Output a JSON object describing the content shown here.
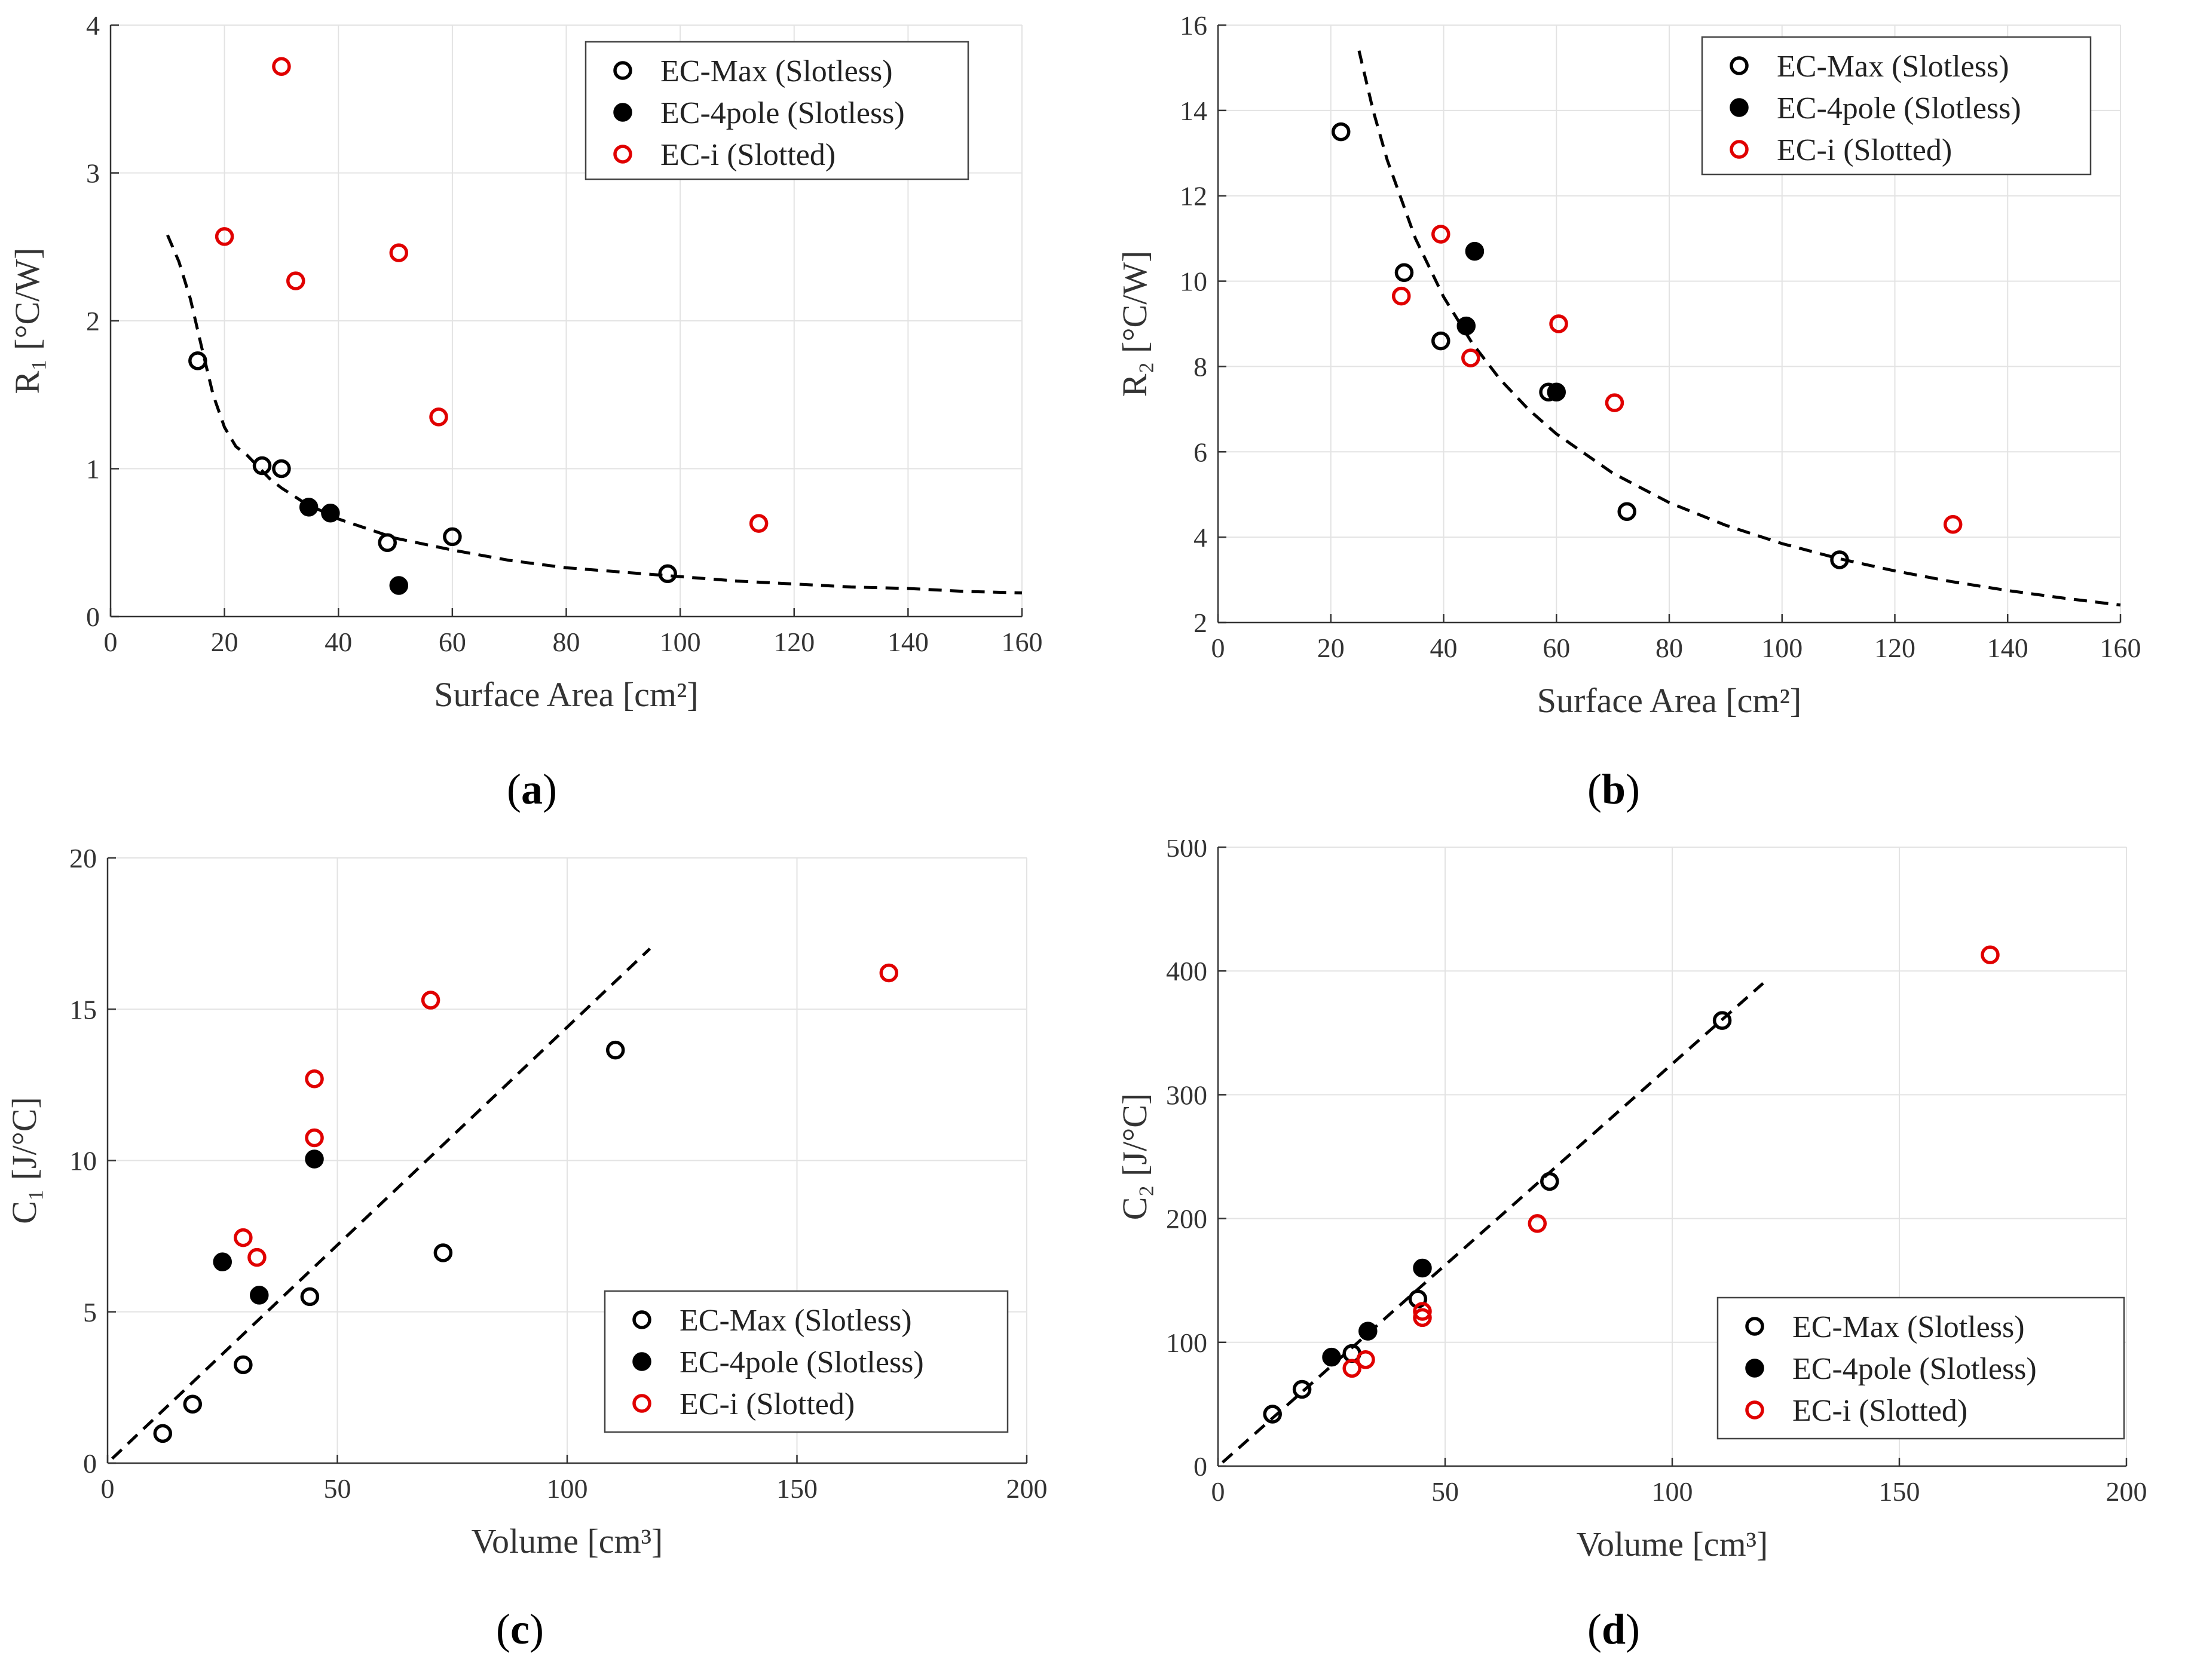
{
  "legend_labels": [
    "EC-Max (Slotless)",
    "EC-4pole (Slotless)",
    "EC-i (Slotted)"
  ],
  "colors": {
    "ec_max": "#000000",
    "ec_4pole": "#000000",
    "ec_i": "#e00000",
    "fit": "#000000",
    "grid": "#e3e3e3",
    "axis": "#333333"
  },
  "chart_data": [
    {
      "id": "a",
      "caption": "a",
      "type": "scatter",
      "xlabel": "Surface Area [cm²]",
      "ylabel": "R₁ [°C/W]",
      "xlim": [
        0,
        160
      ],
      "ylim": [
        0,
        4
      ],
      "xticks": [
        0,
        20,
        40,
        60,
        80,
        100,
        120,
        140,
        160
      ],
      "yticks": [
        0,
        1,
        2,
        3,
        4
      ],
      "legend_position": "top-right",
      "series": [
        {
          "name": "EC-Max (Slotless)",
          "marker": "open",
          "color": "#000000",
          "points": [
            [
              15.3,
              1.73
            ],
            [
              26.6,
              1.02
            ],
            [
              30,
              1
            ],
            [
              48.6,
              0.5
            ],
            [
              60,
              0.54
            ],
            [
              97.8,
              0.29
            ]
          ]
        },
        {
          "name": "EC-4pole (Slotless)",
          "marker": "filled",
          "color": "#000000",
          "points": [
            [
              34.8,
              0.74
            ],
            [
              38.6,
              0.7
            ],
            [
              50.6,
              0.21
            ]
          ]
        },
        {
          "name": "EC-i (Slotted)",
          "marker": "open",
          "color": "#e00000",
          "points": [
            [
              30,
              3.72
            ],
            [
              20,
              2.57
            ],
            [
              32.5,
              2.27
            ],
            [
              50.6,
              2.46
            ],
            [
              57.6,
              1.35
            ],
            [
              113.8,
              0.63
            ]
          ]
        }
      ],
      "fit": {
        "style": "dashed",
        "points": [
          [
            10,
            2.58
          ],
          [
            12,
            2.4
          ],
          [
            14,
            2.15
          ],
          [
            16,
            1.82
          ],
          [
            18,
            1.5
          ],
          [
            20,
            1.28
          ],
          [
            22,
            1.15
          ],
          [
            24,
            1.09
          ],
          [
            26,
            1.01
          ],
          [
            28,
            0.93
          ],
          [
            30,
            0.87
          ],
          [
            34,
            0.77
          ],
          [
            40,
            0.66
          ],
          [
            50,
            0.53
          ],
          [
            60,
            0.45
          ],
          [
            70,
            0.38
          ],
          [
            80,
            0.33
          ],
          [
            90,
            0.3
          ],
          [
            100,
            0.27
          ],
          [
            110,
            0.24
          ],
          [
            120,
            0.22
          ],
          [
            130,
            0.2
          ],
          [
            140,
            0.19
          ],
          [
            150,
            0.17
          ],
          [
            160,
            0.16
          ]
        ]
      }
    },
    {
      "id": "b",
      "caption": "b",
      "type": "scatter",
      "xlabel": "Surface Area [cm²]",
      "ylabel": "R₂ [°C/W]",
      "xlim": [
        0,
        160
      ],
      "ylim": [
        2,
        16
      ],
      "xticks": [
        0,
        20,
        40,
        60,
        80,
        100,
        120,
        140,
        160
      ],
      "yticks": [
        2,
        4,
        6,
        8,
        10,
        12,
        14,
        16
      ],
      "legend_position": "top-right",
      "series": [
        {
          "name": "EC-Max (Slotless)",
          "marker": "open",
          "color": "#000000",
          "points": [
            [
              21.8,
              13.5
            ],
            [
              33,
              10.2
            ],
            [
              39.5,
              8.6
            ],
            [
              58.6,
              7.4
            ],
            [
              72.5,
              4.6
            ],
            [
              110.2,
              3.47
            ]
          ]
        },
        {
          "name": "EC-4pole (Slotless)",
          "marker": "filled",
          "color": "#000000",
          "points": [
            [
              45.5,
              10.7
            ],
            [
              44,
              8.95
            ],
            [
              60,
              7.4
            ]
          ]
        },
        {
          "name": "EC-i (Slotted)",
          "marker": "open",
          "color": "#e00000",
          "points": [
            [
              39.5,
              11.1
            ],
            [
              32.5,
              9.65
            ],
            [
              44.8,
              8.2
            ],
            [
              60.4,
              9
            ],
            [
              70.3,
              7.15
            ],
            [
              130.3,
              4.3
            ]
          ]
        }
      ],
      "fit": {
        "style": "dashed",
        "points": [
          [
            25,
            15.4
          ],
          [
            27.5,
            14
          ],
          [
            30,
            12.84
          ],
          [
            35,
            11
          ],
          [
            40,
            9.63
          ],
          [
            45,
            8.56
          ],
          [
            50,
            7.7
          ],
          [
            55,
            7
          ],
          [
            60,
            6.42
          ],
          [
            70,
            5.5
          ],
          [
            80,
            4.81
          ],
          [
            90,
            4.28
          ],
          [
            100,
            3.85
          ],
          [
            110,
            3.5
          ],
          [
            120,
            3.21
          ],
          [
            130,
            2.96
          ],
          [
            140,
            2.75
          ],
          [
            150,
            2.57
          ],
          [
            160,
            2.41
          ]
        ]
      }
    },
    {
      "id": "c",
      "caption": "c",
      "type": "scatter",
      "xlabel": "Volume [cm³]",
      "ylabel": "C₁ [J/°C]",
      "xlim": [
        0,
        200
      ],
      "ylim": [
        0,
        20
      ],
      "xticks": [
        0,
        50,
        100,
        150,
        200
      ],
      "yticks": [
        0,
        5,
        10,
        15,
        20
      ],
      "legend_position": "bottom-right",
      "series": [
        {
          "name": "EC-Max (Slotless)",
          "marker": "open",
          "color": "#000000",
          "points": [
            [
              12,
              0.98
            ],
            [
              18.5,
              1.95
            ],
            [
              29.5,
              3.25
            ],
            [
              44,
              5.5
            ],
            [
              73,
              6.95
            ],
            [
              110.5,
              13.65
            ]
          ]
        },
        {
          "name": "EC-4pole (Slotless)",
          "marker": "filled",
          "color": "#000000",
          "points": [
            [
              25,
              6.65
            ],
            [
              33,
              5.55
            ],
            [
              45,
              10.05
            ]
          ]
        },
        {
          "name": "EC-i (Slotted)",
          "marker": "open",
          "color": "#e00000",
          "points": [
            [
              29.5,
              7.45
            ],
            [
              32.5,
              6.8
            ],
            [
              45,
              12.7
            ],
            [
              45,
              10.75
            ],
            [
              70.3,
              15.3
            ],
            [
              170,
              16.2
            ]
          ]
        }
      ],
      "fit": {
        "style": "dashed",
        "points": [
          [
            1,
            0.15
          ],
          [
            118,
            17
          ]
        ]
      }
    },
    {
      "id": "d",
      "caption": "d",
      "type": "scatter",
      "xlabel": "Volume [cm³]",
      "ylabel": "C₂ [J/°C]",
      "xlim": [
        0,
        200
      ],
      "ylim": [
        0,
        500
      ],
      "xticks": [
        0,
        50,
        100,
        150,
        200
      ],
      "yticks": [
        0,
        100,
        200,
        300,
        400,
        500
      ],
      "legend_position": "bottom-right",
      "series": [
        {
          "name": "EC-Max (Slotless)",
          "marker": "open",
          "color": "#000000",
          "points": [
            [
              12,
              42
            ],
            [
              18.5,
              62
            ],
            [
              29.5,
              91
            ],
            [
              44,
              135
            ],
            [
              73,
              230
            ],
            [
              111,
              360
            ]
          ]
        },
        {
          "name": "EC-4pole (Slotless)",
          "marker": "filled",
          "color": "#000000",
          "points": [
            [
              25,
              88
            ],
            [
              33,
              109
            ],
            [
              45,
              160
            ]
          ]
        },
        {
          "name": "EC-i (Slotted)",
          "marker": "open",
          "color": "#e00000",
          "points": [
            [
              29.5,
              79
            ],
            [
              32.5,
              86
            ],
            [
              45,
              125
            ],
            [
              45,
              120
            ],
            [
              70.3,
              196
            ],
            [
              170,
              413
            ]
          ]
        }
      ],
      "fit": {
        "style": "dashed",
        "points": [
          [
            1,
            3
          ],
          [
            120,
            390
          ]
        ]
      }
    }
  ]
}
